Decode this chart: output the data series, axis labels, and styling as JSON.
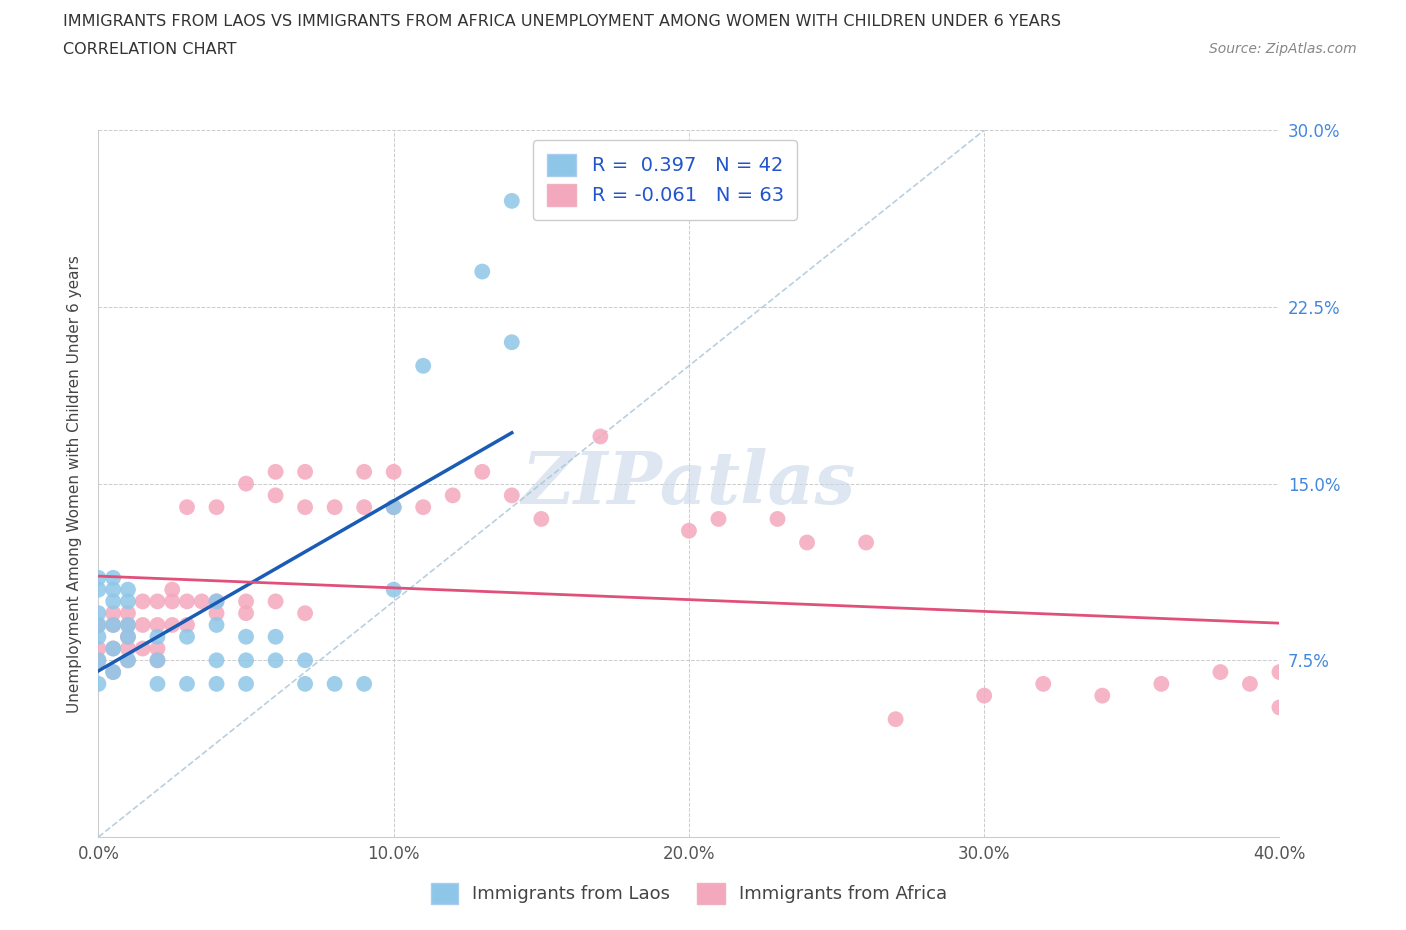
{
  "title_line1": "IMMIGRANTS FROM LAOS VS IMMIGRANTS FROM AFRICA UNEMPLOYMENT AMONG WOMEN WITH CHILDREN UNDER 6 YEARS",
  "title_line2": "CORRELATION CHART",
  "source_text": "Source: ZipAtlas.com",
  "ylabel": "Unemployment Among Women with Children Under 6 years",
  "xmin": 0.0,
  "xmax": 0.4,
  "ymin": 0.0,
  "ymax": 0.3,
  "xticks": [
    0.0,
    0.1,
    0.2,
    0.3,
    0.4
  ],
  "xticklabels": [
    "0.0%",
    "10.0%",
    "20.0%",
    "30.0%",
    "40.0%"
  ],
  "yticks": [
    0.0,
    0.075,
    0.15,
    0.225,
    0.3
  ],
  "yticklabels": [
    "",
    "7.5%",
    "15.0%",
    "22.5%",
    "30.0%"
  ],
  "r_laos": 0.397,
  "n_laos": 42,
  "r_africa": -0.061,
  "n_africa": 63,
  "laos_color": "#8ec6e8",
  "africa_color": "#f4a8be",
  "laos_line_color": "#1a5cb5",
  "africa_line_color": "#e0507a",
  "dashed_line_color": "#a8c4d8",
  "watermark_color": "#c8d8e8",
  "laos_points_x": [
    0.0,
    0.0,
    0.0,
    0.0,
    0.0,
    0.0,
    0.0,
    0.005,
    0.005,
    0.005,
    0.005,
    0.005,
    0.005,
    0.01,
    0.01,
    0.01,
    0.01,
    0.01,
    0.02,
    0.02,
    0.02,
    0.03,
    0.03,
    0.04,
    0.04,
    0.04,
    0.04,
    0.05,
    0.05,
    0.05,
    0.06,
    0.06,
    0.07,
    0.07,
    0.08,
    0.09,
    0.1,
    0.1,
    0.11,
    0.13,
    0.14,
    0.14
  ],
  "laos_points_y": [
    0.065,
    0.075,
    0.085,
    0.09,
    0.095,
    0.105,
    0.11,
    0.07,
    0.08,
    0.09,
    0.1,
    0.105,
    0.11,
    0.075,
    0.085,
    0.09,
    0.1,
    0.105,
    0.065,
    0.075,
    0.085,
    0.065,
    0.085,
    0.065,
    0.075,
    0.09,
    0.1,
    0.065,
    0.075,
    0.085,
    0.075,
    0.085,
    0.065,
    0.075,
    0.065,
    0.065,
    0.105,
    0.14,
    0.2,
    0.24,
    0.21,
    0.27
  ],
  "africa_points_x": [
    0.0,
    0.0,
    0.0,
    0.005,
    0.005,
    0.005,
    0.005,
    0.01,
    0.01,
    0.01,
    0.01,
    0.01,
    0.015,
    0.015,
    0.015,
    0.02,
    0.02,
    0.02,
    0.02,
    0.025,
    0.025,
    0.025,
    0.03,
    0.03,
    0.03,
    0.035,
    0.04,
    0.04,
    0.04,
    0.05,
    0.05,
    0.05,
    0.06,
    0.06,
    0.06,
    0.07,
    0.07,
    0.07,
    0.08,
    0.09,
    0.09,
    0.1,
    0.1,
    0.11,
    0.12,
    0.13,
    0.14,
    0.15,
    0.17,
    0.2,
    0.21,
    0.23,
    0.24,
    0.26,
    0.27,
    0.3,
    0.32,
    0.34,
    0.36,
    0.38,
    0.39,
    0.4,
    0.4
  ],
  "africa_points_y": [
    0.075,
    0.08,
    0.09,
    0.07,
    0.08,
    0.09,
    0.095,
    0.075,
    0.08,
    0.085,
    0.09,
    0.095,
    0.08,
    0.09,
    0.1,
    0.075,
    0.08,
    0.09,
    0.1,
    0.09,
    0.1,
    0.105,
    0.09,
    0.1,
    0.14,
    0.1,
    0.095,
    0.1,
    0.14,
    0.095,
    0.1,
    0.15,
    0.1,
    0.145,
    0.155,
    0.095,
    0.14,
    0.155,
    0.14,
    0.14,
    0.155,
    0.14,
    0.155,
    0.14,
    0.145,
    0.155,
    0.145,
    0.135,
    0.17,
    0.13,
    0.135,
    0.135,
    0.125,
    0.125,
    0.05,
    0.06,
    0.065,
    0.06,
    0.065,
    0.07,
    0.065,
    0.07,
    0.055
  ]
}
